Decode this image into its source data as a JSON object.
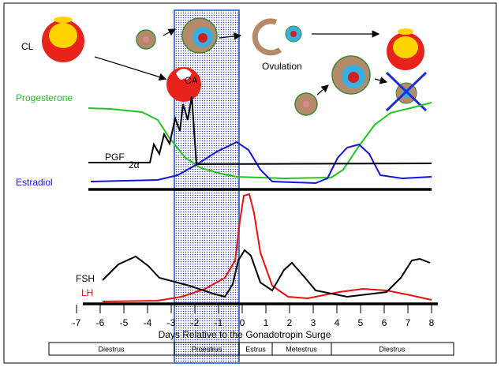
{
  "labels": {
    "cl": "CL",
    "ca": "CA",
    "ovulation": "Ovulation",
    "progesterone": "Progesterone",
    "pgf": "PGF",
    "pgf_sub": "2α",
    "estradiol": "Estradiol",
    "fsh": "FSH",
    "lh": "LH"
  },
  "x_axis": {
    "ticks": [
      -7,
      -6,
      -5,
      -4,
      -3,
      -2,
      -1,
      0,
      1,
      2,
      3,
      4,
      5,
      6,
      7,
      8
    ],
    "title": "Days Relative to the Gonadotropin Surge"
  },
  "phases": [
    "Diestrus",
    "Proestrus",
    "Estrus",
    "Metestrus",
    "Diestrus"
  ]
}
